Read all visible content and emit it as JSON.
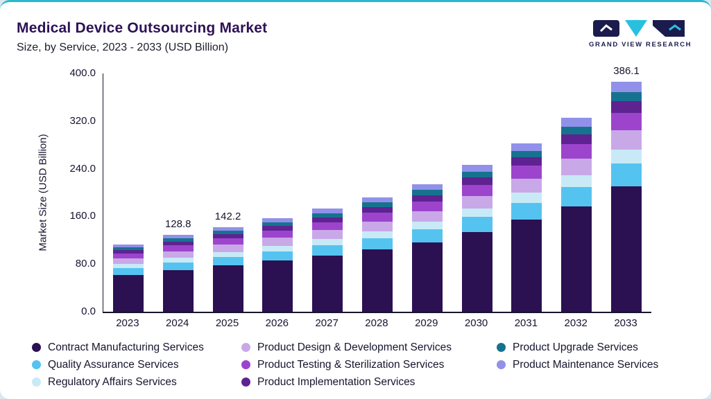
{
  "header": {
    "title": "Medical Device Outsourcing Market",
    "subtitle": "Size, by Service, 2023 - 2033 (USD Billion)"
  },
  "logo": {
    "text": "GRAND VIEW RESEARCH"
  },
  "chart_data": {
    "type": "bar",
    "stacked": true,
    "title": "Medical Device Outsourcing Market Size, by Service, 2023 - 2033 (USD Billion)",
    "xlabel": "",
    "ylabel": "Market Size (USD Billion)",
    "ylim": [
      0,
      400
    ],
    "yticks": [
      {
        "label": "400.0",
        "value": 400
      },
      {
        "label": "320.0",
        "value": 320
      },
      {
        "label": "240.0",
        "value": 240
      },
      {
        "label": "160.0",
        "value": 160
      },
      {
        "label": "80.0",
        "value": 80
      },
      {
        "label": "0.0",
        "value": 0
      }
    ],
    "legend_position": "bottom",
    "grid": false,
    "categories": [
      "2023",
      "2024",
      "2025",
      "2026",
      "2027",
      "2028",
      "2029",
      "2030",
      "2031",
      "2032",
      "2033"
    ],
    "series": [
      {
        "name": "Contract Manufacturing Services",
        "color": "#2b1052",
        "values": [
          61.7,
          70.2,
          77.5,
          85.6,
          94.5,
          104.6,
          116.5,
          134.3,
          154.3,
          177.3,
          210.4
        ]
      },
      {
        "name": "Quality Assurance Services",
        "color": "#55c3f0",
        "values": [
          11.3,
          12.9,
          14.2,
          15.7,
          17.3,
          19.2,
          21.4,
          24.6,
          28.3,
          32.5,
          38.6
        ]
      },
      {
        "name": "Regulatory Affairs Services",
        "color": "#c8eaf6",
        "values": [
          6.8,
          7.7,
          8.5,
          9.4,
          10.4,
          11.5,
          12.8,
          14.8,
          17.0,
          19.5,
          23.2
        ]
      },
      {
        "name": "Product Design & Development Services",
        "color": "#c9a8e8",
        "values": [
          9.6,
          10.9,
          12.1,
          13.3,
          14.7,
          16.3,
          18.2,
          20.9,
          24.1,
          27.7,
          32.8
        ]
      },
      {
        "name": "Product Testing & Sterilization Services",
        "color": "#9d44cd",
        "values": [
          8.5,
          9.7,
          10.7,
          11.8,
          13.0,
          14.4,
          16.0,
          18.5,
          21.2,
          24.4,
          29.0
        ]
      },
      {
        "name": "Product Implementation Services",
        "color": "#5e2391",
        "values": [
          5.7,
          6.4,
          7.1,
          7.9,
          8.7,
          9.6,
          10.7,
          12.3,
          14.2,
          16.3,
          19.3
        ]
      },
      {
        "name": "Product Upgrade Services",
        "color": "#16738f",
        "values": [
          4.5,
          5.2,
          5.7,
          6.3,
          6.9,
          7.7,
          8.6,
          9.9,
          11.3,
          13.0,
          15.4
        ]
      },
      {
        "name": "Product Maintenance Services",
        "color": "#9191ea",
        "values": [
          5.1,
          5.8,
          6.4,
          7.1,
          7.8,
          8.6,
          9.6,
          11.1,
          12.7,
          14.6,
          17.4
        ]
      }
    ],
    "totals": [
      113.2,
      128.8,
      142.2,
      157.0,
      173.4,
      191.9,
      213.8,
      246.4,
      283.2,
      325.4,
      386.1
    ],
    "bar_labels": [
      null,
      "128.8",
      "142.2",
      null,
      null,
      null,
      null,
      null,
      null,
      null,
      "386.1"
    ]
  }
}
